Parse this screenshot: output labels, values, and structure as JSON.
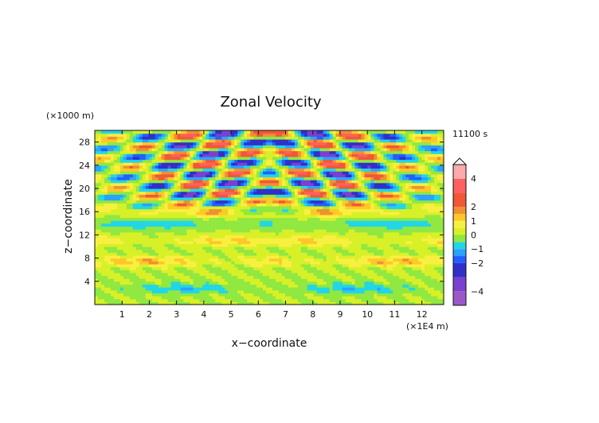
{
  "chart_data": {
    "type": "heatmap",
    "title": "Zonal Velocity",
    "xlabel": "x−coordinate",
    "ylabel": "z−coordinate",
    "x_unit": "(×1E4 m)",
    "y_unit": "(×1000 m)",
    "time_label": "11100 s",
    "xlim": [
      0,
      12.8
    ],
    "ylim": [
      0,
      30
    ],
    "x_ticks": [
      "1",
      "2",
      "3",
      "4",
      "5",
      "6",
      "7",
      "8",
      "9",
      "10",
      "11",
      "12"
    ],
    "y_ticks": [
      "4",
      "8",
      "12",
      "16",
      "20",
      "24",
      "28"
    ],
    "colorbar": {
      "labels": [
        "4",
        "2",
        "1",
        "0",
        "−1",
        "−2",
        "−4"
      ],
      "label_values": [
        4,
        2,
        1,
        0,
        -1,
        -2,
        -4
      ],
      "levels": [
        -5,
        -4,
        -3,
        -2,
        -1.5,
        -1,
        -0.5,
        0,
        0.5,
        1,
        1.5,
        2,
        3,
        4,
        5
      ],
      "colors": [
        "#9b59c8",
        "#7a40d0",
        "#3030c8",
        "#2060ff",
        "#2fa0ff",
        "#22d6e6",
        "#90e840",
        "#d8f028",
        "#f8f040",
        "#ffc828",
        "#f09030",
        "#f05838",
        "#ff6060",
        "#ffaaaa"
      ],
      "extend": "max"
    },
    "field": {
      "domain_x": [
        0,
        12.8
      ],
      "domain_z": [
        0,
        30
      ],
      "symmetry_x": 6.4,
      "bands": [
        {
          "z": 2.8,
          "amp": -0.9,
          "note": "lower blue band"
        },
        {
          "z": 7.5,
          "amp": 1.4,
          "note": "orange band near 8"
        },
        {
          "z": 11.0,
          "amp": 1.1,
          "note": "orange band near 12"
        },
        {
          "z": 14.0,
          "amp": -1.0,
          "note": "cyan band near 14"
        },
        {
          "z": 16.0,
          "amp": 1.0,
          "note": "orange band near 16"
        }
      ],
      "wave_region_z": [
        15,
        30
      ],
      "max_value": 4.6,
      "min_value": -3.4
    }
  }
}
